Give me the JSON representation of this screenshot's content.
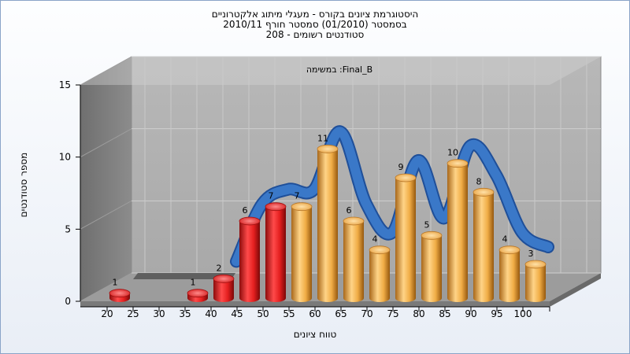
{
  "chart_data": {
    "type": "bar",
    "title_lines": [
      "היסטוגרמת ציונים בקורס - מעגלי מיתוג אלקטרוניים",
      "בסמסטר  (01/2010)  סמסטר חורף  2010/11",
      "סטודנטים רשומים - 208"
    ],
    "annotation": "במשימה :Final_B",
    "xlabel": "טווח ציונים",
    "ylabel": "מספר סטודנטים",
    "categories": [
      "20",
      "25",
      "30",
      "35",
      "40",
      "45",
      "50",
      "55",
      "60",
      "65",
      "70",
      "75",
      "80",
      "85",
      "90",
      "95",
      "100"
    ],
    "values": [
      1,
      null,
      null,
      1,
      2,
      6,
      7,
      7,
      11,
      6,
      4,
      9,
      5,
      10,
      8,
      4,
      3
    ],
    "bar_colors": [
      "#d42020",
      "#d42020",
      "#d42020",
      "#d42020",
      "#d42020",
      "#d42020",
      "#d42020",
      "#e0a040",
      "#e0a040",
      "#e0a040",
      "#e0a040",
      "#e0a040",
      "#e0a040",
      "#e0a040",
      "#e0a040",
      "#e0a040",
      "#e0a040"
    ],
    "ylim": [
      0,
      15
    ],
    "yticks": [
      0,
      5,
      10,
      15
    ],
    "grid": true,
    "curve_color": "#3a78c8",
    "curve_shadow_color": "#555555"
  }
}
